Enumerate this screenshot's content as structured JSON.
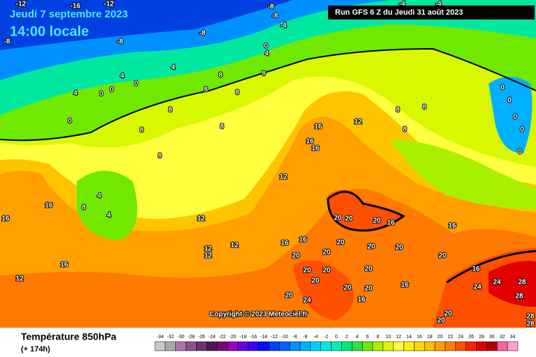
{
  "header": {
    "date": "Jeudi 7 septembre 2023",
    "time": "14:00 locale",
    "run": "Run GFS 6 Z du Jeudi 31 août 2023"
  },
  "copyright": "Copyright © 2023 Meteociel.fr",
  "legend": {
    "title": "Température 850hPa",
    "subtitle": "(+ 174h)",
    "scale": [
      -34,
      -32,
      -30,
      -28,
      -26,
      -24,
      -22,
      -20,
      -18,
      -16,
      -14,
      -12,
      -10,
      -8,
      -6,
      -4,
      -2,
      0,
      2,
      4,
      6,
      8,
      10,
      12,
      14,
      16,
      18,
      20,
      22,
      24,
      26,
      28,
      30,
      32,
      34
    ],
    "colors": [
      "#c8c8c8",
      "#a8a8a8",
      "#a878a8",
      "#905090",
      "#703070",
      "#501850",
      "#780a78",
      "#9a00c8",
      "#6a00e0",
      "#3a00ff",
      "#0010ff",
      "#0040ff",
      "#0060ff",
      "#0090ff",
      "#00b0ff",
      "#00d0ff",
      "#00e8e0",
      "#00f0b0",
      "#00e870",
      "#30e040",
      "#70e800",
      "#a8f000",
      "#d8f800",
      "#ffff40",
      "#fff000",
      "#ffd800",
      "#ffc000",
      "#ffa000",
      "#ff8000",
      "#ff5000",
      "#ff2000",
      "#e00000",
      "#b00000",
      "#ff60a0",
      "#ffa0d0"
    ]
  },
  "map": {
    "labels": [
      -12,
      -16,
      -12,
      -8,
      -8,
      -8,
      -8,
      -8,
      -4,
      -4,
      -4,
      0,
      4,
      4,
      4,
      0,
      8,
      8,
      4,
      0,
      0,
      0,
      8,
      8,
      8,
      8,
      8,
      8,
      16,
      16,
      16,
      12,
      12,
      4,
      8,
      4,
      16,
      16,
      12,
      12,
      12,
      12,
      12,
      16,
      20,
      20,
      20,
      16,
      16,
      16,
      16,
      20,
      20,
      20,
      20,
      20,
      20,
      20,
      20,
      20,
      20,
      20,
      20,
      20,
      24,
      16,
      16,
      16,
      24,
      24,
      28,
      20,
      20,
      28,
      28,
      28,
      8,
      8,
      8,
      0,
      0,
      0,
      0,
      0
    ]
  }
}
